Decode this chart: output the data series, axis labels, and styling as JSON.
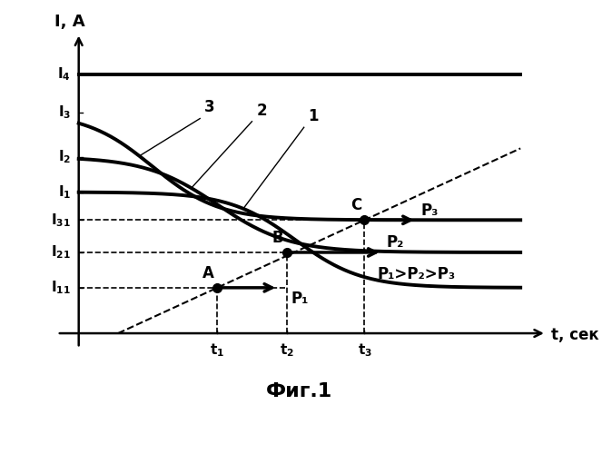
{
  "title": "Фиг.1",
  "xlabel": "t, сек",
  "ylabel": "I, А",
  "background_color": "#ffffff",
  "I4": 0.88,
  "I3": 0.75,
  "I2": 0.6,
  "I1": 0.48,
  "I31": 0.385,
  "I21": 0.275,
  "I11": 0.155,
  "t1": 0.32,
  "t2": 0.48,
  "t3": 0.66,
  "xmax": 1.0,
  "ymax": 1.02,
  "annotation_text": "P₁>P₂>P₃",
  "P_labels": [
    "P₁",
    "P₂",
    "P₃"
  ]
}
